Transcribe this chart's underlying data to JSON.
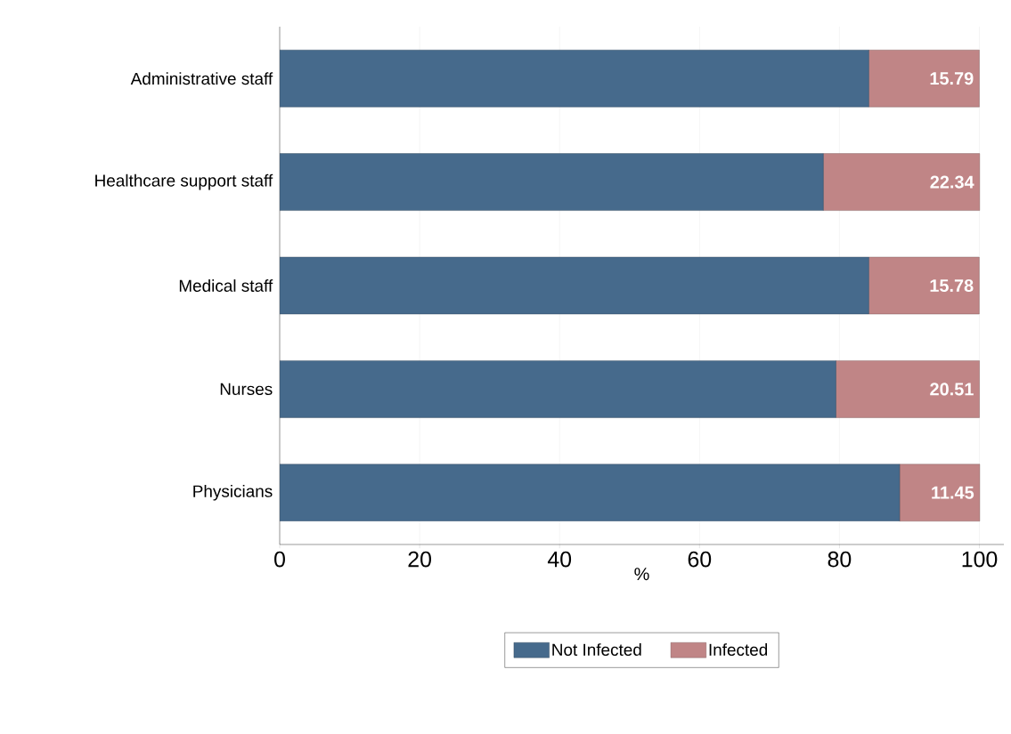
{
  "chart_data": {
    "type": "bar",
    "orientation": "horizontal",
    "stacked": true,
    "categories": [
      "Administrative staff",
      "Healthcare support staff",
      "Medical staff",
      "Nurses",
      "Physicians"
    ],
    "series": [
      {
        "name": "Not Infected",
        "color": "#466a8c",
        "values": [
          84.2,
          77.7,
          84.2,
          79.5,
          88.6
        ]
      },
      {
        "name": "Infected",
        "color": "#c08586",
        "values": [
          15.79,
          22.34,
          15.78,
          20.51,
          11.45
        ],
        "value_labels": [
          "15.79",
          "22.34",
          "15.78",
          "20.51",
          "11.45"
        ]
      }
    ],
    "xlabel": "%",
    "xlim": [
      0,
      103.5
    ],
    "xticks": [
      0,
      20,
      40,
      60,
      80,
      100
    ],
    "grid": "x",
    "legend": "bottom"
  }
}
